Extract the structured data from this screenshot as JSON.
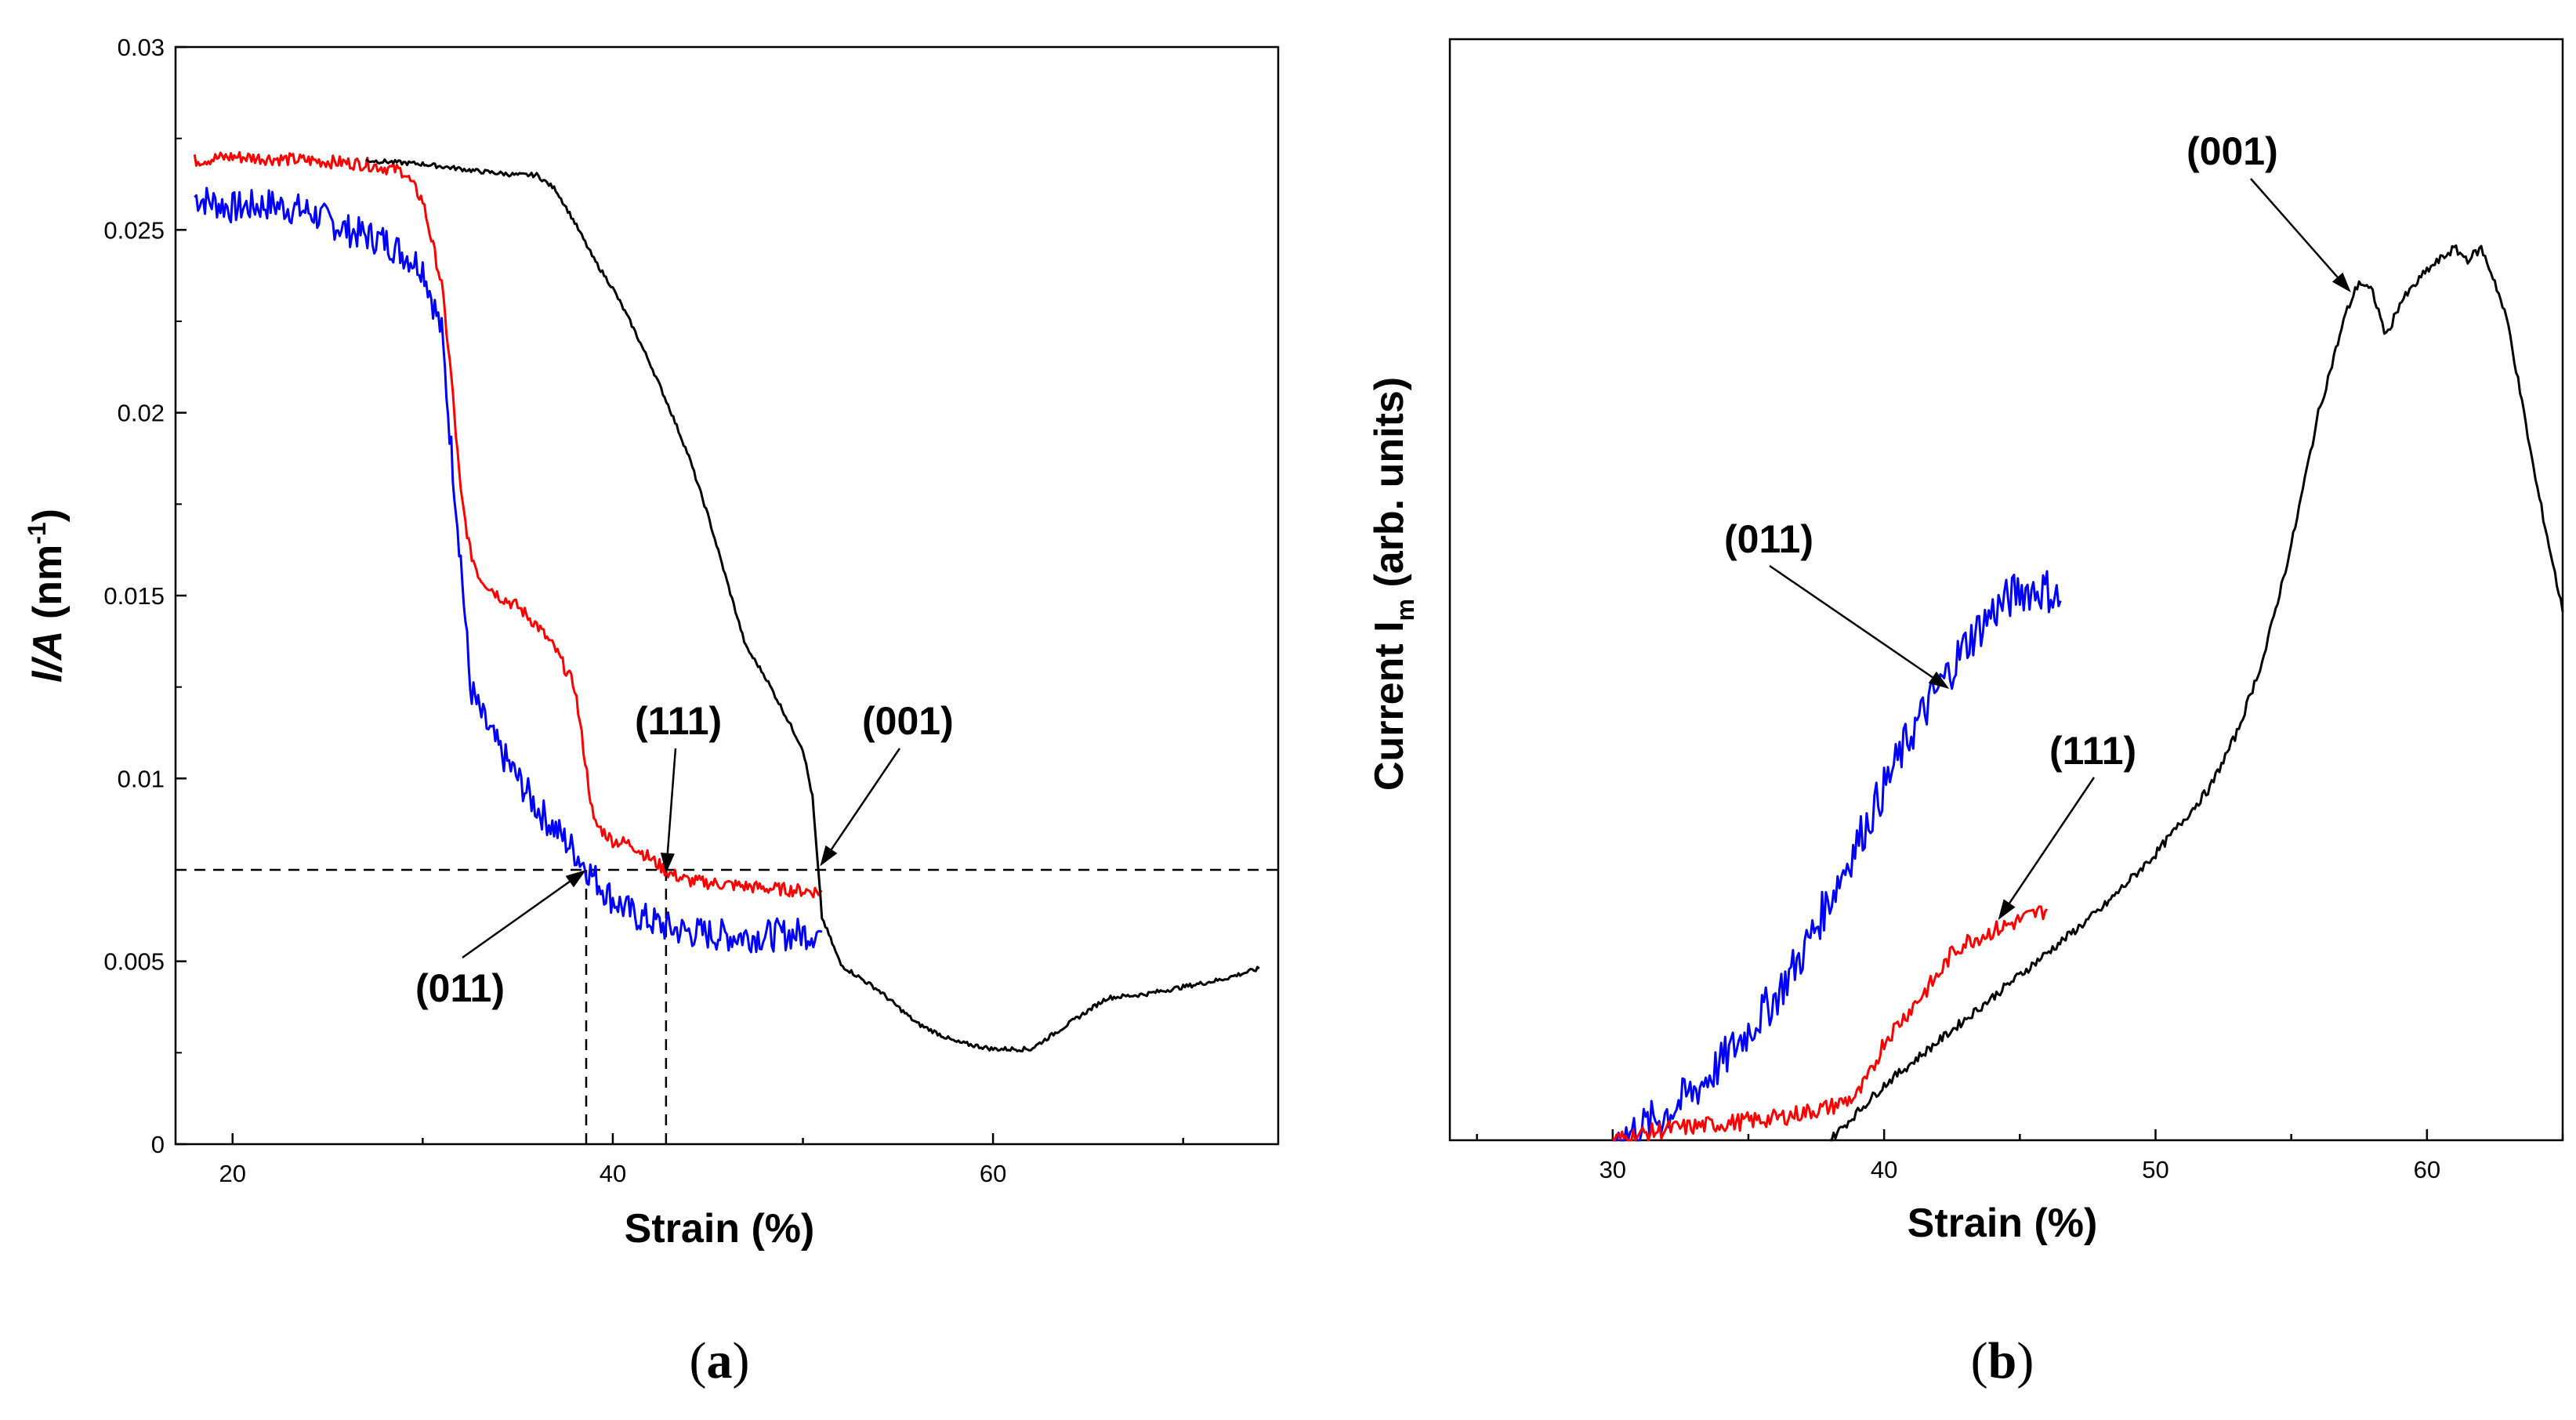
{
  "chart_data": [
    {
      "panel_caption": {
        "open": "(",
        "letter": "a",
        "close": ")"
      },
      "type": "line",
      "xlabel": "Strain (%)",
      "ylabel_italic": "l/A",
      "ylabel_unit": "(nm",
      "ylabel_sup": "-1",
      "ylabel_close": ")",
      "xlim": [
        17,
        75
      ],
      "ylim": [
        0,
        0.03
      ],
      "x_ticks": [
        20,
        40,
        60
      ],
      "y_ticks": [
        0,
        0.005,
        0.01,
        0.015,
        0.02,
        0.025,
        0.03
      ],
      "y_tick_labels": [
        "0",
        "0.005",
        "0.01",
        "0.015",
        "0.02",
        "0.025",
        "0.03"
      ],
      "reference_line_y": 0.0075,
      "reference_x_markers": [
        38.6,
        42.8
      ],
      "series": [
        {
          "name": "(011)",
          "color": "#0000ff",
          "x": [
            18,
            20,
            22,
            24,
            26,
            28,
            30,
            31,
            31.5,
            32,
            32.5,
            33,
            34,
            35,
            36,
            37,
            38,
            39,
            40,
            41,
            42,
            43,
            44,
            46,
            48,
            51
          ],
          "y": [
            0.0259,
            0.0256,
            0.0257,
            0.0255,
            0.025,
            0.0247,
            0.024,
            0.0222,
            0.019,
            0.016,
            0.0125,
            0.0118,
            0.0108,
            0.01,
            0.0092,
            0.0086,
            0.008,
            0.0073,
            0.0067,
            0.0063,
            0.0061,
            0.0059,
            0.0058,
            0.0057,
            0.0057,
            0.0058
          ]
        },
        {
          "name": "(111)",
          "color": "#ff0000",
          "x": [
            18,
            20,
            24,
            27,
            29,
            30,
            31,
            31.5,
            32,
            32.5,
            33,
            34,
            35,
            36,
            37,
            38,
            39,
            40,
            41,
            42,
            43,
            44,
            46,
            48,
            51
          ],
          "y": [
            0.0269,
            0.027,
            0.0269,
            0.0268,
            0.0266,
            0.0258,
            0.0235,
            0.021,
            0.0178,
            0.0162,
            0.0155,
            0.015,
            0.0147,
            0.0142,
            0.0135,
            0.0125,
            0.0088,
            0.0083,
            0.0082,
            0.0078,
            0.0074,
            0.0072,
            0.0071,
            0.007,
            0.0069
          ]
        },
        {
          "name": "(001)",
          "color": "#000000",
          "x": [
            27,
            30,
            33,
            35,
            36,
            37,
            38,
            39,
            40,
            41,
            42,
            43,
            44,
            45,
            46,
            47,
            48,
            49,
            50,
            50.5,
            51,
            52,
            54,
            56,
            58,
            60,
            62,
            64,
            66,
            68,
            70,
            72,
            74
          ],
          "y": [
            0.0269,
            0.0268,
            0.0266,
            0.0265,
            0.0265,
            0.0261,
            0.0252,
            0.0242,
            0.0234,
            0.0224,
            0.0213,
            0.0201,
            0.0188,
            0.0172,
            0.0154,
            0.0136,
            0.0128,
            0.0118,
            0.0108,
            0.0095,
            0.0062,
            0.0049,
            0.0042,
            0.0033,
            0.0028,
            0.0026,
            0.0026,
            0.0033,
            0.004,
            0.0041,
            0.0043,
            0.0045,
            0.0048
          ]
        }
      ],
      "annotations": [
        {
          "text": "(111)",
          "x": 42.8,
          "y": 0.0074
        },
        {
          "text": "(001)",
          "x": 50.8,
          "y": 0.0075
        },
        {
          "text": "(011)",
          "x": 38.6,
          "y": 0.0075
        }
      ]
    },
    {
      "panel_caption": {
        "open": "(",
        "letter": "b",
        "close": ")"
      },
      "type": "line",
      "xlabel": "Strain (%)",
      "ylabel": "Current  I",
      "ylabel_sub": "m",
      "ylabel_units": " (arb. units)",
      "xlim": [
        24,
        65
      ],
      "ylim": [
        0,
        1
      ],
      "x_ticks": [
        30,
        40,
        50,
        60
      ],
      "series": [
        {
          "name": "(011)",
          "color": "#0000ff",
          "x": [
            30,
            31,
            32,
            33,
            34,
            35,
            36,
            37,
            38,
            39,
            40,
            41,
            42,
            43,
            44,
            45,
            46,
            46.5
          ],
          "y": [
            0.0,
            0.01,
            0.025,
            0.045,
            0.07,
            0.1,
            0.13,
            0.17,
            0.22,
            0.27,
            0.32,
            0.37,
            0.41,
            0.45,
            0.48,
            0.5,
            0.5,
            0.49
          ]
        },
        {
          "name": "(111)",
          "color": "#ff0000",
          "x": [
            30,
            32,
            34,
            36,
            38,
            39,
            39.5,
            40,
            41,
            42,
            42.5,
            43,
            44,
            45,
            46
          ],
          "y": [
            0.0,
            0.01,
            0.015,
            0.02,
            0.03,
            0.04,
            0.06,
            0.09,
            0.12,
            0.15,
            0.17,
            0.18,
            0.19,
            0.2,
            0.21
          ]
        },
        {
          "name": "(001)",
          "color": "#000000",
          "x": [
            38,
            40,
            42,
            44,
            46,
            48,
            50,
            52,
            53,
            54,
            55,
            56,
            57,
            57.5,
            58,
            58.5,
            59,
            60,
            61,
            61.5,
            62,
            62.5,
            63,
            64,
            65
          ],
          "y": [
            0.0,
            0.05,
            0.09,
            0.13,
            0.17,
            0.21,
            0.26,
            0.32,
            0.37,
            0.44,
            0.54,
            0.66,
            0.75,
            0.78,
            0.77,
            0.73,
            0.76,
            0.79,
            0.81,
            0.8,
            0.81,
            0.78,
            0.74,
            0.6,
            0.48
          ]
        }
      ],
      "annotations": [
        {
          "text": "(001)",
          "x": 57.2,
          "y": 0.77
        },
        {
          "text": "(011)",
          "x": 42.4,
          "y": 0.41
        },
        {
          "text": "(111)",
          "x": 44.2,
          "y": 0.2
        }
      ]
    }
  ]
}
